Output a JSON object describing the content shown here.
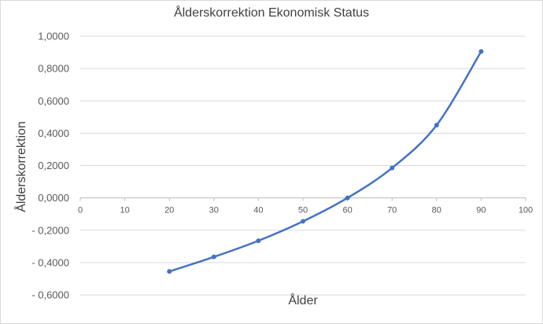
{
  "chart_data": {
    "type": "line",
    "title": "Ålderskorrektion Ekonomisk Status",
    "xlabel": "Ålder",
    "ylabel": "Ålderskorrektion",
    "xlim": [
      0,
      100
    ],
    "ylim": [
      -0.6,
      1.0
    ],
    "x_ticks": [
      "0",
      "10",
      "20",
      "30",
      "40",
      "50",
      "60",
      "70",
      "80",
      "90",
      "100"
    ],
    "y_ticks": [
      "1,0000",
      "0,8000",
      "0,6000",
      "0,4000",
      "0,2000",
      "0,0000",
      "- 0,2000",
      "- 0,4000",
      "- 0,6000"
    ],
    "grid": "horizontal",
    "smooth": true,
    "series": [
      {
        "x": [
          20,
          30,
          40,
          50,
          60,
          70,
          80,
          90
        ],
        "y": [
          -0.455,
          -0.365,
          -0.265,
          -0.145,
          0.0,
          0.185,
          0.45,
          0.905
        ],
        "color": "#4472c4"
      }
    ]
  }
}
